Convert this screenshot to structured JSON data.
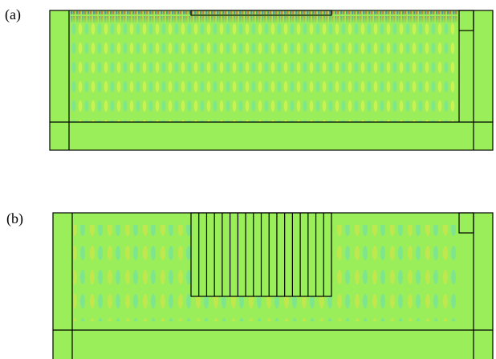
{
  "panels": [
    {
      "label": "(a)"
    },
    {
      "label": "(b)"
    }
  ]
}
